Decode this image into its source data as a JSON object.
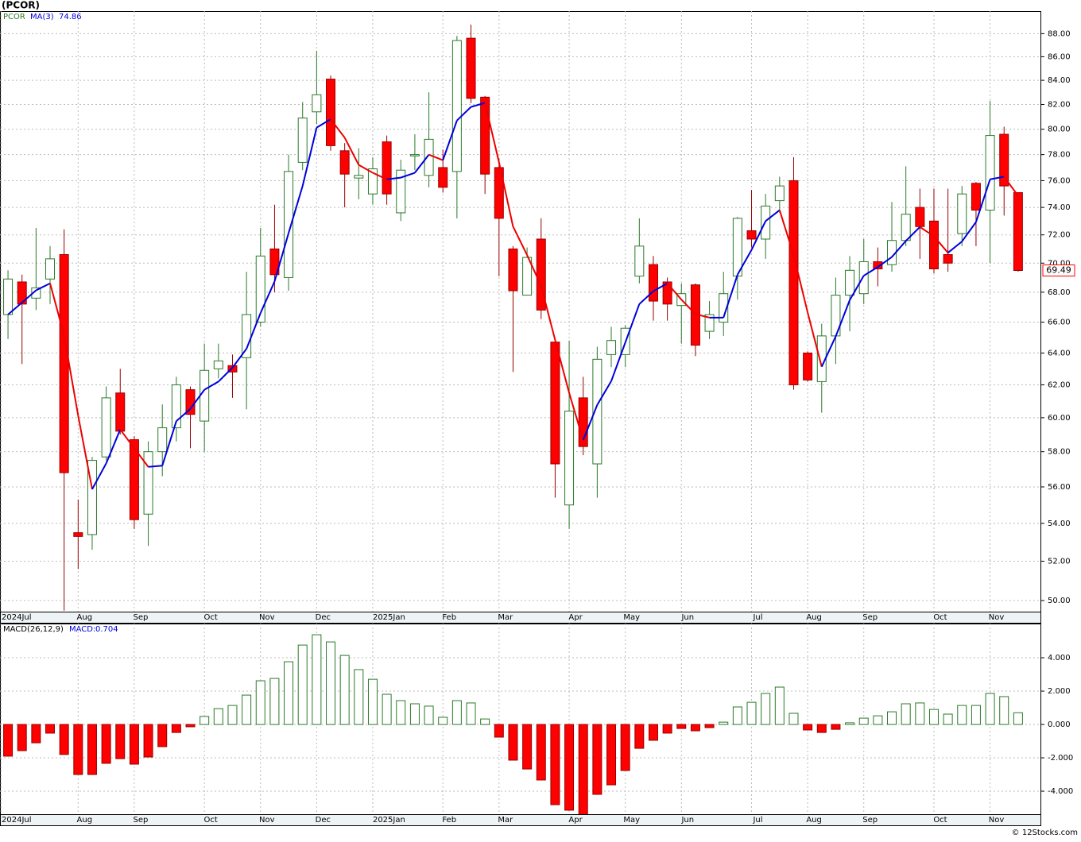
{
  "chart_data": [
    {
      "type": "candlestick",
      "title": "(PCOR)",
      "symbol": "PCOR",
      "ma_name": "MA(3)",
      "log_scale": true,
      "grid": true,
      "up_color": "#2a7a2a",
      "down_color": "#ff0000",
      "ma_up_color": "#0000dd",
      "ma_down_color": "#ee0000",
      "open": [
        66.5,
        68.7,
        67.6,
        68.9,
        70.6,
        53.5,
        53.4,
        57.7,
        61.5,
        58.7,
        54.5,
        58,
        59.4,
        61.7,
        59.8,
        63,
        63.2,
        63.7,
        66,
        71,
        69,
        77.4,
        81.4,
        84.1,
        78.3,
        76.2,
        75,
        79,
        73.6,
        77.9,
        76.4,
        77,
        76.7,
        87.6,
        82.6,
        77,
        71,
        67.8,
        71.7,
        64.7,
        55,
        61.2,
        57.3,
        63.9,
        63.9,
        69.1,
        69.9,
        68.7,
        67.1,
        68.5,
        65.4,
        66,
        69.1,
        72.3,
        71.7,
        74.5,
        76,
        64,
        62.2,
        65.1,
        67.8,
        67.9,
        70.1,
        69.9,
        71.6,
        74,
        73,
        70.6,
        72.1,
        75.8,
        73.8,
        79.6,
        75.1
      ],
      "high": [
        69.5,
        69.2,
        72.5,
        71.2,
        72.4,
        55.3,
        57.7,
        61.9,
        63,
        58.9,
        58.6,
        60.8,
        62.5,
        61.9,
        64.6,
        64.6,
        63.9,
        69.4,
        72.5,
        74.2,
        78,
        82.2,
        86.5,
        84.4,
        78.9,
        78.5,
        77.8,
        79.5,
        77.6,
        79.6,
        83,
        78.4,
        87.8,
        88.8,
        82.7,
        77.7,
        71.2,
        71.1,
        73.2,
        64.8,
        64.8,
        62.5,
        64.4,
        65.7,
        65.8,
        73.2,
        70.5,
        69,
        68.6,
        68.6,
        67.4,
        69.4,
        73.3,
        75.3,
        75,
        76.3,
        77.8,
        64.1,
        65.9,
        69,
        70.5,
        71.7,
        71.1,
        74.4,
        77.1,
        75.4,
        75.4,
        75.4,
        75.6,
        75.9,
        82.3,
        80.2,
        75.1
      ],
      "low": [
        64.9,
        63.3,
        66.8,
        67.2,
        49.5,
        51.6,
        52.6,
        57.5,
        59,
        53.7,
        52.8,
        56.6,
        58.6,
        58.2,
        58,
        62.4,
        61.2,
        60.5,
        65.7,
        68,
        68.1,
        76.8,
        80.4,
        78.3,
        74,
        74.6,
        74.2,
        74.2,
        73,
        76.8,
        75.5,
        75.1,
        73.2,
        82.1,
        75,
        69.1,
        62.8,
        67.8,
        66.2,
        55.4,
        53.7,
        57.8,
        55.4,
        63.1,
        63.1,
        68.6,
        66.1,
        66.1,
        64.6,
        63.8,
        64.9,
        65.1,
        67.5,
        71.1,
        70.3,
        73.6,
        61.7,
        62.2,
        60.3,
        63.3,
        65.4,
        67.2,
        68.4,
        69.4,
        71.2,
        70.3,
        69.3,
        69.4,
        71.2,
        71.2,
        70,
        73.4,
        69.4
      ],
      "close": [
        68.9,
        67.2,
        68.3,
        70.3,
        56.8,
        53.3,
        57.5,
        61.2,
        59.2,
        54.2,
        58,
        59.4,
        62,
        60.2,
        62.9,
        63.5,
        62.8,
        66.5,
        70.5,
        69.2,
        76.7,
        80.9,
        82.8,
        78.7,
        76.5,
        76.4,
        76.9,
        75,
        76.8,
        78,
        79.2,
        75.5,
        87.4,
        82.5,
        76.5,
        73.2,
        68.1,
        70.4,
        66.8,
        57.3,
        60.4,
        58.3,
        63.6,
        64.8,
        65.6,
        71.2,
        67.4,
        67.2,
        67.9,
        64.5,
        66.5,
        67.9,
        73.2,
        71.7,
        74.1,
        75.6,
        62,
        62.3,
        65.1,
        67.8,
        69.5,
        70.1,
        69.6,
        71.6,
        73.5,
        72.6,
        69.6,
        70,
        75,
        73.8,
        79.5,
        75.6,
        69.49
      ],
      "ma": [
        66.5,
        67.3,
        68.13,
        68.6,
        65.13,
        60.13,
        55.87,
        57.33,
        59.3,
        58.2,
        57.13,
        57.2,
        59.8,
        60.53,
        61.7,
        62.2,
        63.07,
        64.27,
        66.6,
        68.73,
        72.13,
        75.6,
        80.13,
        80.8,
        79.33,
        77.2,
        76.6,
        76.1,
        76.23,
        76.6,
        78,
        77.57,
        80.7,
        81.8,
        82.13,
        77.4,
        72.6,
        70.57,
        68.43,
        64.83,
        61.5,
        58.67,
        60.77,
        62.23,
        64.67,
        67.2,
        68.07,
        68.6,
        67.5,
        66.53,
        66.3,
        66.3,
        69.2,
        70.93,
        73,
        73.8,
        70.57,
        66.63,
        63.13,
        65.07,
        67.47,
        69.13,
        69.73,
        70.43,
        71.57,
        72.57,
        71.9,
        70.73,
        71.53,
        72.93,
        76.1,
        76.3,
        74.86
      ],
      "xlim": [
        -0.57,
        73.65
      ],
      "ylim": [
        49.45,
        90
      ],
      "yticks": [
        {
          "value": 50,
          "label": "50.00"
        },
        {
          "value": 52,
          "label": "52.00"
        },
        {
          "value": 54,
          "label": "54.00"
        },
        {
          "value": 56,
          "label": "56.00"
        },
        {
          "value": 58,
          "label": "58.00"
        },
        {
          "value": 60,
          "label": "60.00"
        },
        {
          "value": 62,
          "label": "62.00"
        },
        {
          "value": 64,
          "label": "64.00"
        },
        {
          "value": 66,
          "label": "66.00"
        },
        {
          "value": 68,
          "label": "68.00"
        },
        {
          "value": 70,
          "label": "70.00"
        },
        {
          "value": 72,
          "label": "72.00"
        },
        {
          "value": 74,
          "label": "74.00"
        },
        {
          "value": 76,
          "label": "76.00"
        },
        {
          "value": 78,
          "label": "78.00"
        },
        {
          "value": 80,
          "label": "80.00"
        },
        {
          "value": 82,
          "label": "82.00"
        },
        {
          "value": 84,
          "label": "84.00"
        },
        {
          "value": 86,
          "label": "86.00"
        },
        {
          "value": 88,
          "label": "88.00"
        }
      ],
      "xticks": [
        {
          "value": -0.5,
          "label": "2024Jul"
        },
        {
          "value": 5,
          "label": "Aug"
        },
        {
          "value": 9,
          "label": "Sep"
        },
        {
          "value": 14,
          "label": "Oct"
        },
        {
          "value": 18,
          "label": "Nov"
        },
        {
          "value": 22,
          "label": "Dec"
        },
        {
          "value": 26,
          "label": "2025Jan"
        },
        {
          "value": 31,
          "label": "Feb"
        },
        {
          "value": 35,
          "label": "Mar"
        },
        {
          "value": 40,
          "label": "Apr"
        },
        {
          "value": 44,
          "label": "May"
        },
        {
          "value": 48,
          "label": "Jun"
        },
        {
          "value": 53,
          "label": "Jul"
        },
        {
          "value": 57,
          "label": "Aug"
        },
        {
          "value": 61,
          "label": "Sep"
        },
        {
          "value": 66,
          "label": "Oct"
        },
        {
          "value": 70,
          "label": "Nov"
        }
      ]
    },
    {
      "type": "bar",
      "name": "MACD(26,12,9)",
      "value_name": "MACD:",
      "grid": true,
      "up_color": "#2a7a2a",
      "down_color": "#ff0000",
      "values": [
        -1.9,
        -1.57,
        -1.1,
        -0.52,
        -1.8,
        -3.0,
        -3.0,
        -2.33,
        -2.05,
        -2.38,
        -1.95,
        -1.33,
        -0.48,
        -0.14,
        0.48,
        0.95,
        1.14,
        1.76,
        2.62,
        2.76,
        3.76,
        4.76,
        5.38,
        4.95,
        4.14,
        3.29,
        2.71,
        1.81,
        1.43,
        1.24,
        1.1,
        0.43,
        1.43,
        1.29,
        0.33,
        -0.76,
        -2.14,
        -2.67,
        -3.33,
        -4.81,
        -5.14,
        -5.5,
        -4.19,
        -3.62,
        -2.76,
        -1.43,
        -0.95,
        -0.52,
        -0.24,
        -0.38,
        -0.19,
        0.14,
        1.05,
        1.33,
        1.86,
        2.24,
        0.67,
        -0.33,
        -0.48,
        -0.29,
        0.1,
        0.38,
        0.52,
        0.76,
        1.24,
        1.29,
        0.9,
        0.62,
        1.14,
        1.14,
        1.86,
        1.67,
        0.704
      ],
      "ylim": [
        -5.38,
        6.05
      ],
      "yticks": [
        {
          "value": -4,
          "label": "-4.000"
        },
        {
          "value": -2,
          "label": "-2.000"
        },
        {
          "value": 0,
          "label": "0.000"
        },
        {
          "value": 2,
          "label": "2.000"
        },
        {
          "value": 4,
          "label": "4.000"
        }
      ]
    }
  ],
  "footer": "© 12Stocks.com"
}
